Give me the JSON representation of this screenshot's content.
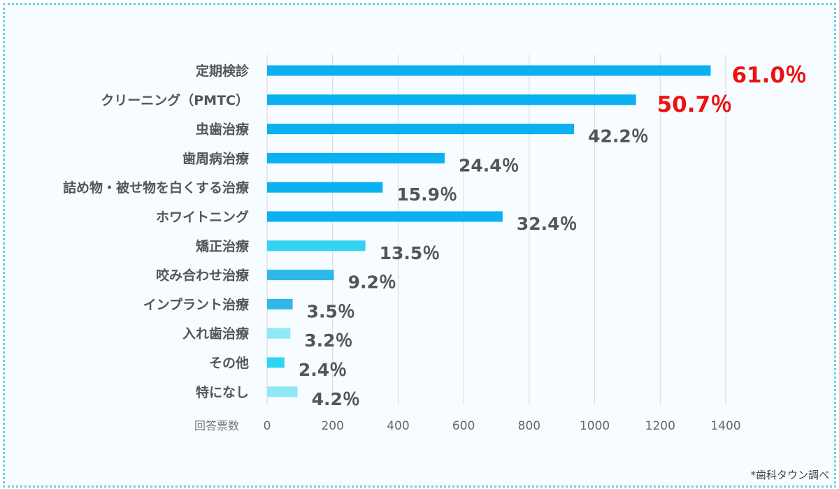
{
  "chart_data": {
    "type": "bar",
    "orientation": "horizontal",
    "categories": [
      "定期検診",
      "クリーニング（PMTC）",
      "虫歯治療",
      "歯周病治療",
      "詰め物・被せ物を白くする治療",
      "ホワイトニング",
      "矯正治療",
      "咬み合わせ治療",
      "インプラント治療",
      "入れ歯治療",
      "その他",
      "特になし"
    ],
    "values": [
      1354,
      1126,
      937,
      542,
      353,
      719,
      300,
      204,
      78,
      71,
      53,
      93
    ],
    "data_labels": [
      "61.0％",
      "50.7％",
      "42.2％",
      "24.4％",
      "15.9％",
      "32.4％",
      "13.5％",
      "9.2％",
      "3.5％",
      "3.2％",
      "2.4％",
      "4.2％"
    ],
    "highlighted": [
      true,
      true,
      false,
      false,
      false,
      false,
      false,
      false,
      false,
      false,
      false,
      false
    ],
    "bar_colors": [
      "#0bb0f0",
      "#0bb0f0",
      "#0bb0f0",
      "#0bb0f0",
      "#0bb0f0",
      "#0bb0f0",
      "#35d3f2",
      "#2fb8ea",
      "#2fb8ea",
      "#8fe8f6",
      "#2cd6f0",
      "#8fe8f6"
    ],
    "xlabel": "回答票数",
    "ylabel": "",
    "xlim": [
      0,
      1400
    ],
    "xticks": [
      0,
      200,
      400,
      600,
      800,
      1000,
      1200,
      1400
    ],
    "xtick_labels": [
      "0",
      "200",
      "400",
      "600",
      "800",
      "1000",
      "1200",
      "1400"
    ],
    "grid": "vertical",
    "legend": "none",
    "highlight_color": "#ee1111",
    "label_color": "#555555",
    "grid_color": "#d9d9d9"
  },
  "source_note": "*歯科タウン調べ",
  "frame_color": "#5fd3e3"
}
